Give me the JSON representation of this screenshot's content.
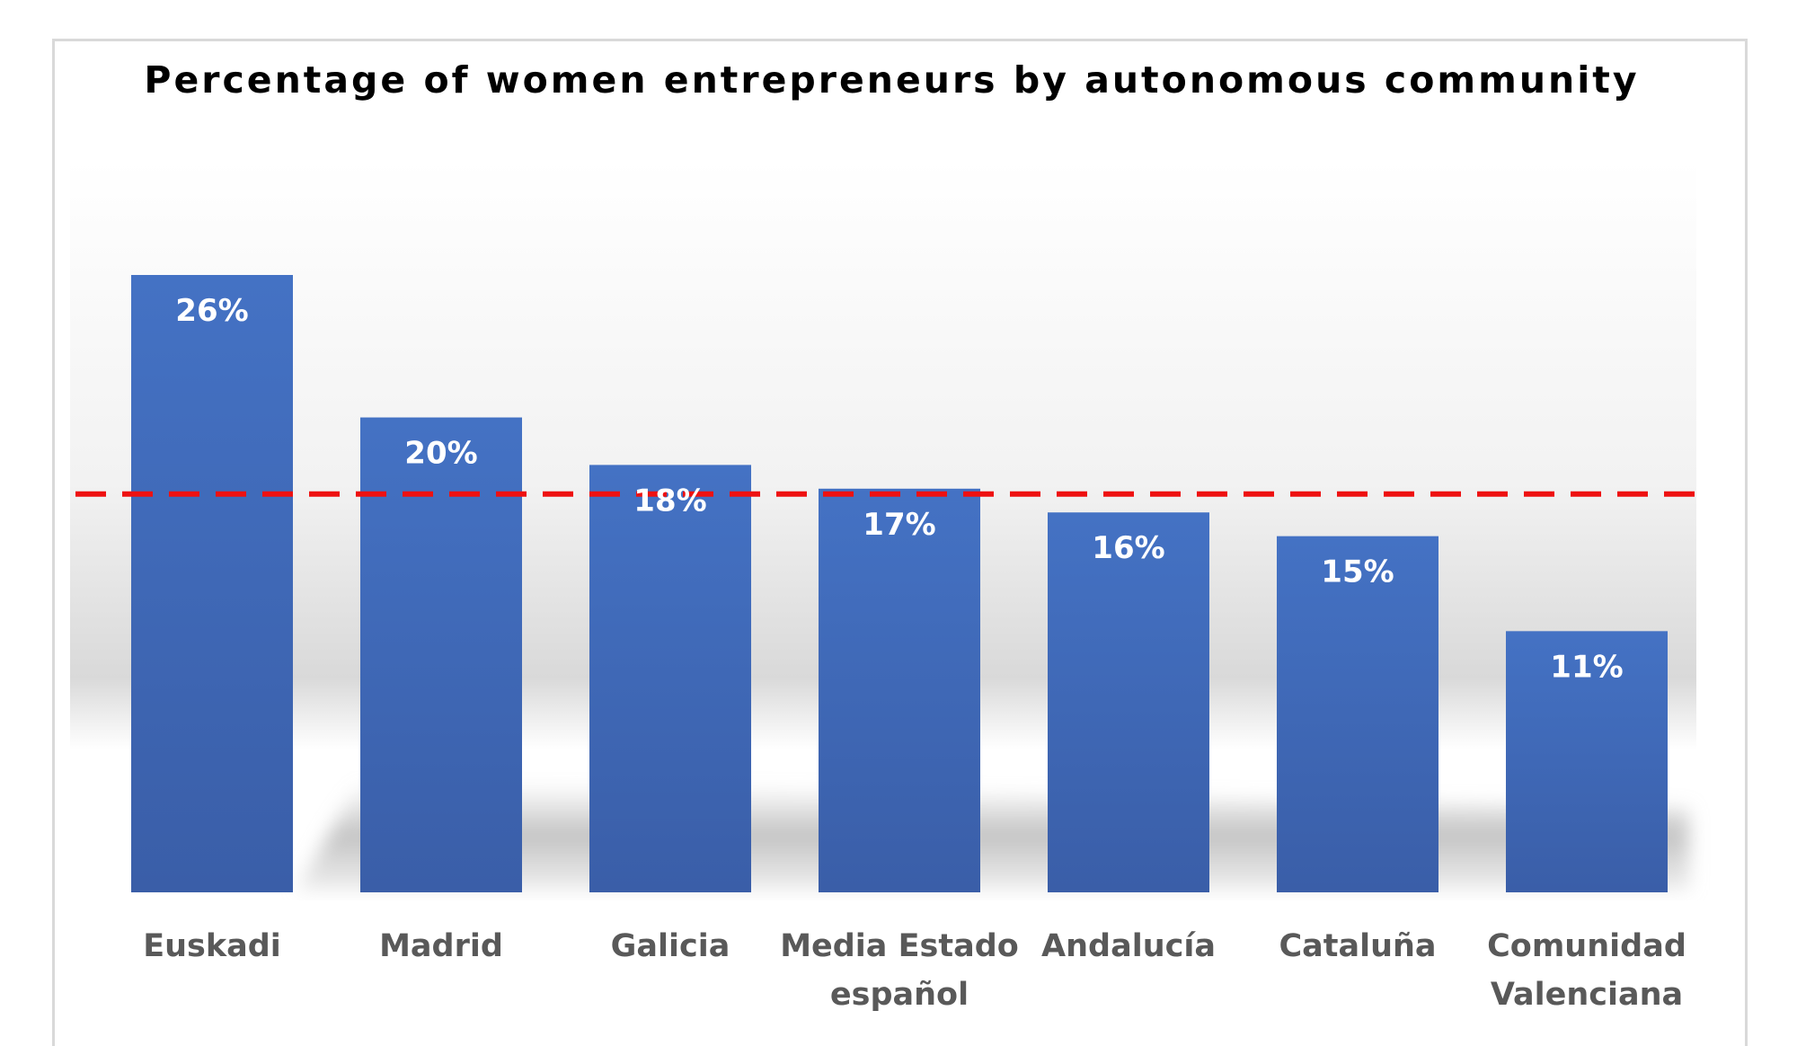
{
  "chart_data": {
    "type": "bar",
    "title": "Percentage of women entrepreneurs by autonomous community",
    "xlabel": "",
    "ylabel": "",
    "categories": [
      [
        "Euskadi"
      ],
      [
        "Madrid"
      ],
      [
        "Galicia"
      ],
      [
        "Media Estado",
        "español"
      ],
      [
        "Andalucía"
      ],
      [
        "Cataluña"
      ],
      [
        "Comunidad",
        "Valenciana"
      ]
    ],
    "values": [
      26,
      20,
      18,
      17,
      16,
      15,
      11
    ],
    "data_labels": [
      "26%",
      "20%",
      "18%",
      "17%",
      "16%",
      "15%",
      "11%"
    ],
    "reference_line": {
      "value": 17,
      "style": "dashed",
      "color": "#ee1111"
    },
    "ylim": [
      0,
      26
    ],
    "grid": false,
    "legend": "none",
    "colors": {
      "bar_top": "#4472c4",
      "bar_bottom": "#3a5ea8",
      "label": "#ffffff",
      "axis_text": "#595959"
    }
  }
}
